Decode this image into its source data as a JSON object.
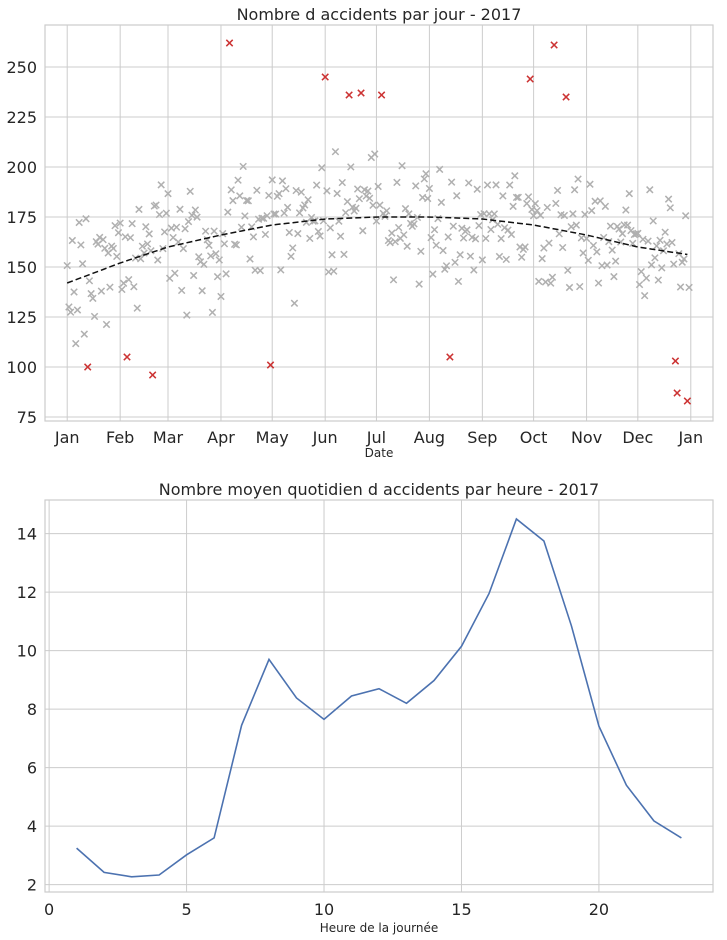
{
  "colors": {
    "normal_marker": "#b0b0b0",
    "outlier_marker": "#cc3333",
    "trend": "#111111",
    "hourly_line": "#4c72b0",
    "grid": "#cccccc",
    "text": "#262626"
  },
  "chart_data": [
    {
      "type": "scatter",
      "title": "Nombre d accidents par jour - 2017",
      "xlabel": "Date",
      "ylabel": "",
      "x_ticklabels": [
        "Jan",
        "Feb",
        "Mar",
        "Apr",
        "May",
        "Jun",
        "Jul",
        "Aug",
        "Sep",
        "Oct",
        "Nov",
        "Dec",
        "Jan"
      ],
      "x_tick_dates": [
        "2017-01-01",
        "2017-02-01",
        "2017-03-01",
        "2017-04-01",
        "2017-05-01",
        "2017-06-01",
        "2017-07-01",
        "2017-08-01",
        "2017-09-01",
        "2017-10-01",
        "2017-11-01",
        "2017-12-01",
        "2018-01-01"
      ],
      "xlim": [
        "2016-12-19",
        "2018-01-14"
      ],
      "ylim": [
        73,
        271
      ],
      "y_ticks": [
        75,
        100,
        125,
        150,
        175,
        200,
        225,
        250
      ],
      "marker": "x",
      "grid": true,
      "series": [
        {
          "role": "outliers",
          "points": [
            [
              "2017-01-13",
              100
            ],
            [
              "2017-02-05",
              105
            ],
            [
              "2017-02-20",
              96
            ],
            [
              "2017-04-06",
              262
            ],
            [
              "2017-04-30",
              101
            ],
            [
              "2017-06-01",
              245
            ],
            [
              "2017-06-15",
              236
            ],
            [
              "2017-06-22",
              237
            ],
            [
              "2017-07-04",
              236
            ],
            [
              "2017-08-13",
              105
            ],
            [
              "2017-09-29",
              244
            ],
            [
              "2017-10-13",
              261
            ],
            [
              "2017-10-20",
              235
            ],
            [
              "2017-12-23",
              103
            ],
            [
              "2017-12-24",
              87
            ],
            [
              "2017-12-30",
              83
            ]
          ]
        },
        {
          "role": "normal",
          "seed": 2017,
          "count": 349
        }
      ],
      "trend": {
        "style": "dashed",
        "points": [
          [
            "2017-01-01",
            142
          ],
          [
            "2017-02-01",
            152
          ],
          [
            "2017-03-01",
            160
          ],
          [
            "2017-04-01",
            166
          ],
          [
            "2017-05-01",
            171
          ],
          [
            "2017-06-01",
            174
          ],
          [
            "2017-07-01",
            175
          ],
          [
            "2017-08-01",
            175
          ],
          [
            "2017-09-01",
            174
          ],
          [
            "2017-10-01",
            171
          ],
          [
            "2017-11-01",
            166
          ],
          [
            "2017-12-01",
            160
          ],
          [
            "2018-01-01",
            156
          ]
        ]
      }
    },
    {
      "type": "line",
      "title": "Nombre moyen quotidien d accidents par heure - 2017",
      "xlabel": "Heure de la journée",
      "ylabel": "",
      "xlim": [
        -0.15,
        24.15
      ],
      "ylim": [
        1.75,
        15.15
      ],
      "x_ticks": [
        0,
        5,
        10,
        15,
        20
      ],
      "y_ticks": [
        2,
        4,
        6,
        8,
        10,
        12,
        14
      ],
      "grid": true,
      "x": [
        1,
        2,
        3,
        4,
        5,
        6,
        7,
        8,
        9,
        10,
        11,
        12,
        13,
        14,
        15,
        16,
        17,
        18,
        19,
        20,
        21,
        22,
        23
      ],
      "values": [
        3.25,
        2.42,
        2.27,
        2.33,
        3.02,
        3.6,
        7.45,
        9.7,
        8.38,
        7.65,
        8.45,
        8.7,
        8.2,
        8.98,
        10.15,
        11.95,
        14.5,
        13.75,
        10.85,
        7.42,
        5.4,
        4.18,
        3.6
      ]
    }
  ]
}
